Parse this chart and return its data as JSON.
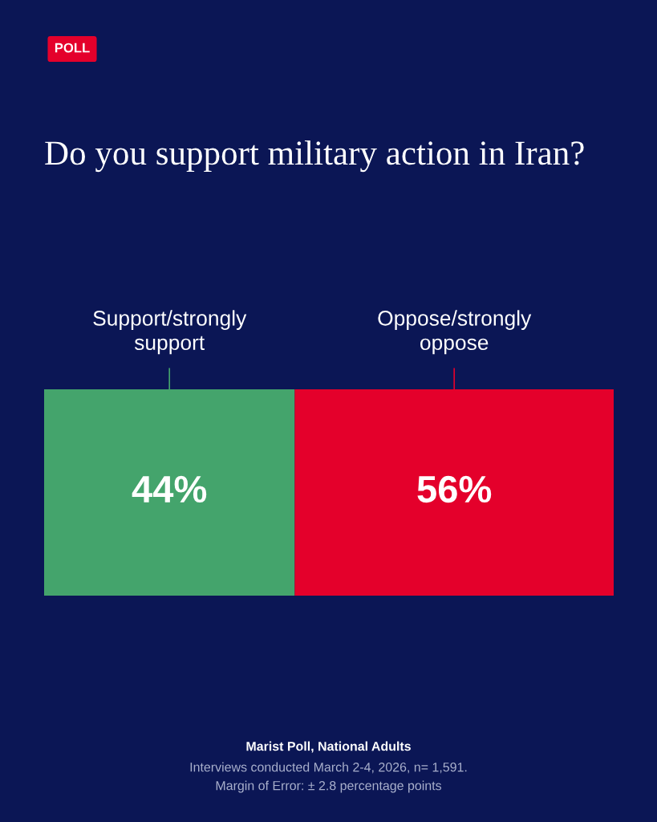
{
  "chart_data": {
    "type": "bar",
    "orientation": "horizontal",
    "stacked": true,
    "title": "Do you support military action in Iran?",
    "categories": [
      null
    ],
    "series": [
      {
        "name": "Support/strongly support",
        "color": "#44a46c",
        "values": [
          44
        ],
        "value_labels": [
          "44%"
        ]
      },
      {
        "name": "Oppose/strongly oppose",
        "color": "#e4002b",
        "values": [
          56
        ],
        "value_labels": [
          "56%"
        ]
      }
    ],
    "xlim": [
      0,
      100
    ],
    "tick_labels": false,
    "legend": false,
    "grid": false,
    "annotations": [
      "POLL",
      "Marist Poll, National Adults",
      "Interviews conducted March 2-4, 2026, n= 1,591.",
      "Margin of Error: ± 2.8 percentage points"
    ]
  }
}
